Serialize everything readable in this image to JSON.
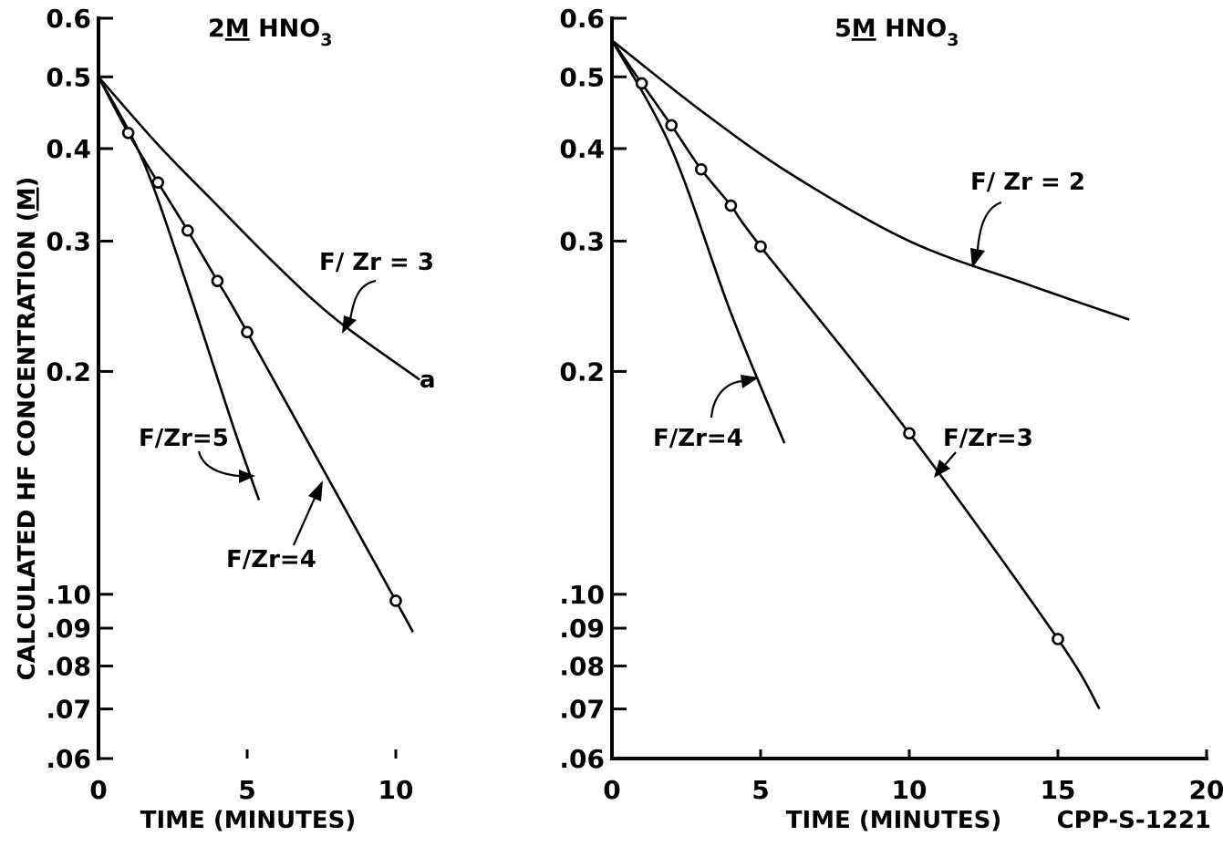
{
  "chart_data": [
    {
      "type": "line",
      "title": "2M HNO3",
      "title_parts": {
        "pre": "2",
        "ul": "M",
        "post": " HNO",
        "sub": "3"
      },
      "xlabel": "TIME (MINUTES)",
      "ylabel": "CALCULATED HF CONCENTRATION (M)",
      "ylabel_parts": {
        "pre": "CALCULATED HF CONCENTRATION (",
        "ul": "M",
        "post": ")"
      },
      "xlim": [
        0,
        11
      ],
      "ylim": [
        0.06,
        0.6
      ],
      "yscale": "log",
      "x_ticks": [
        0,
        5,
        10
      ],
      "x_tick_labels": [
        "0",
        "5",
        "10"
      ],
      "y_ticks": [
        0.06,
        0.07,
        0.08,
        0.09,
        0.1,
        0.2,
        0.3,
        0.4,
        0.5,
        0.6
      ],
      "y_tick_labels": [
        ".06",
        ".07",
        ".08",
        ".09",
        ".10",
        "0.2",
        "0.3",
        "0.4",
        "0.5",
        "0.6"
      ],
      "grid": false,
      "series": [
        {
          "name": "F/ Zr = 3",
          "x": [
            0,
            2,
            4,
            6,
            8,
            10.8
          ],
          "y": [
            0.5,
            0.405,
            0.335,
            0.278,
            0.235,
            0.195
          ],
          "points": [],
          "end_marker": "a"
        },
        {
          "name": "F/Zr=4",
          "x": [
            0,
            1,
            2,
            3,
            4,
            5,
            10,
            10.5
          ],
          "y": [
            0.5,
            0.42,
            0.36,
            0.31,
            0.265,
            0.226,
            0.098,
            0.09
          ],
          "points": [
            [
              1,
              0.42
            ],
            [
              2,
              0.36
            ],
            [
              3,
              0.31
            ],
            [
              4,
              0.265
            ],
            [
              5,
              0.226
            ],
            [
              10,
              0.098
            ]
          ]
        },
        {
          "name": "F/Zr=5",
          "x": [
            0,
            1.5,
            3,
            4.5,
            5.4
          ],
          "y": [
            0.5,
            0.385,
            0.26,
            0.17,
            0.134
          ],
          "points": []
        }
      ]
    },
    {
      "type": "line",
      "title": "5M HNO3",
      "title_parts": {
        "pre": "5",
        "ul": "M",
        "post": " HNO",
        "sub": "3"
      },
      "xlabel": "TIME (MINUTES)",
      "ylabel": "",
      "xlim": [
        0,
        20
      ],
      "ylim": [
        0.06,
        0.6
      ],
      "yscale": "log",
      "x_ticks": [
        0,
        5,
        10,
        15,
        20
      ],
      "x_tick_labels": [
        "0",
        "5",
        "10",
        "15",
        "20"
      ],
      "y_ticks": [
        0.06,
        0.07,
        0.08,
        0.09,
        0.1,
        0.2,
        0.3,
        0.4,
        0.5,
        0.6
      ],
      "y_tick_labels": [
        ".06",
        ".07",
        ".08",
        ".09",
        ".10",
        "0.2",
        "0.3",
        "0.4",
        "0.5",
        "0.6"
      ],
      "grid": false,
      "series": [
        {
          "name": "F/ Zr = 2",
          "x": [
            0,
            3,
            6,
            10,
            14,
            17.4
          ],
          "y": [
            0.56,
            0.45,
            0.37,
            0.3,
            0.262,
            0.235
          ],
          "points": []
        },
        {
          "name": "F/Zr=3",
          "x": [
            0,
            1,
            2,
            3,
            4,
            5,
            10,
            15,
            16.4
          ],
          "y": [
            0.56,
            0.49,
            0.43,
            0.375,
            0.335,
            0.295,
            0.165,
            0.087,
            0.07
          ],
          "points": [
            [
              1,
              0.49
            ],
            [
              2,
              0.43
            ],
            [
              3,
              0.375
            ],
            [
              4,
              0.335
            ],
            [
              5,
              0.295
            ],
            [
              10,
              0.165
            ],
            [
              15,
              0.087
            ]
          ]
        },
        {
          "name": "F/Zr=4",
          "x": [
            0,
            2,
            4,
            5.8
          ],
          "y": [
            0.56,
            0.4,
            0.24,
            0.16
          ],
          "points": []
        }
      ]
    }
  ],
  "figure_id": "CPP-S-1221"
}
